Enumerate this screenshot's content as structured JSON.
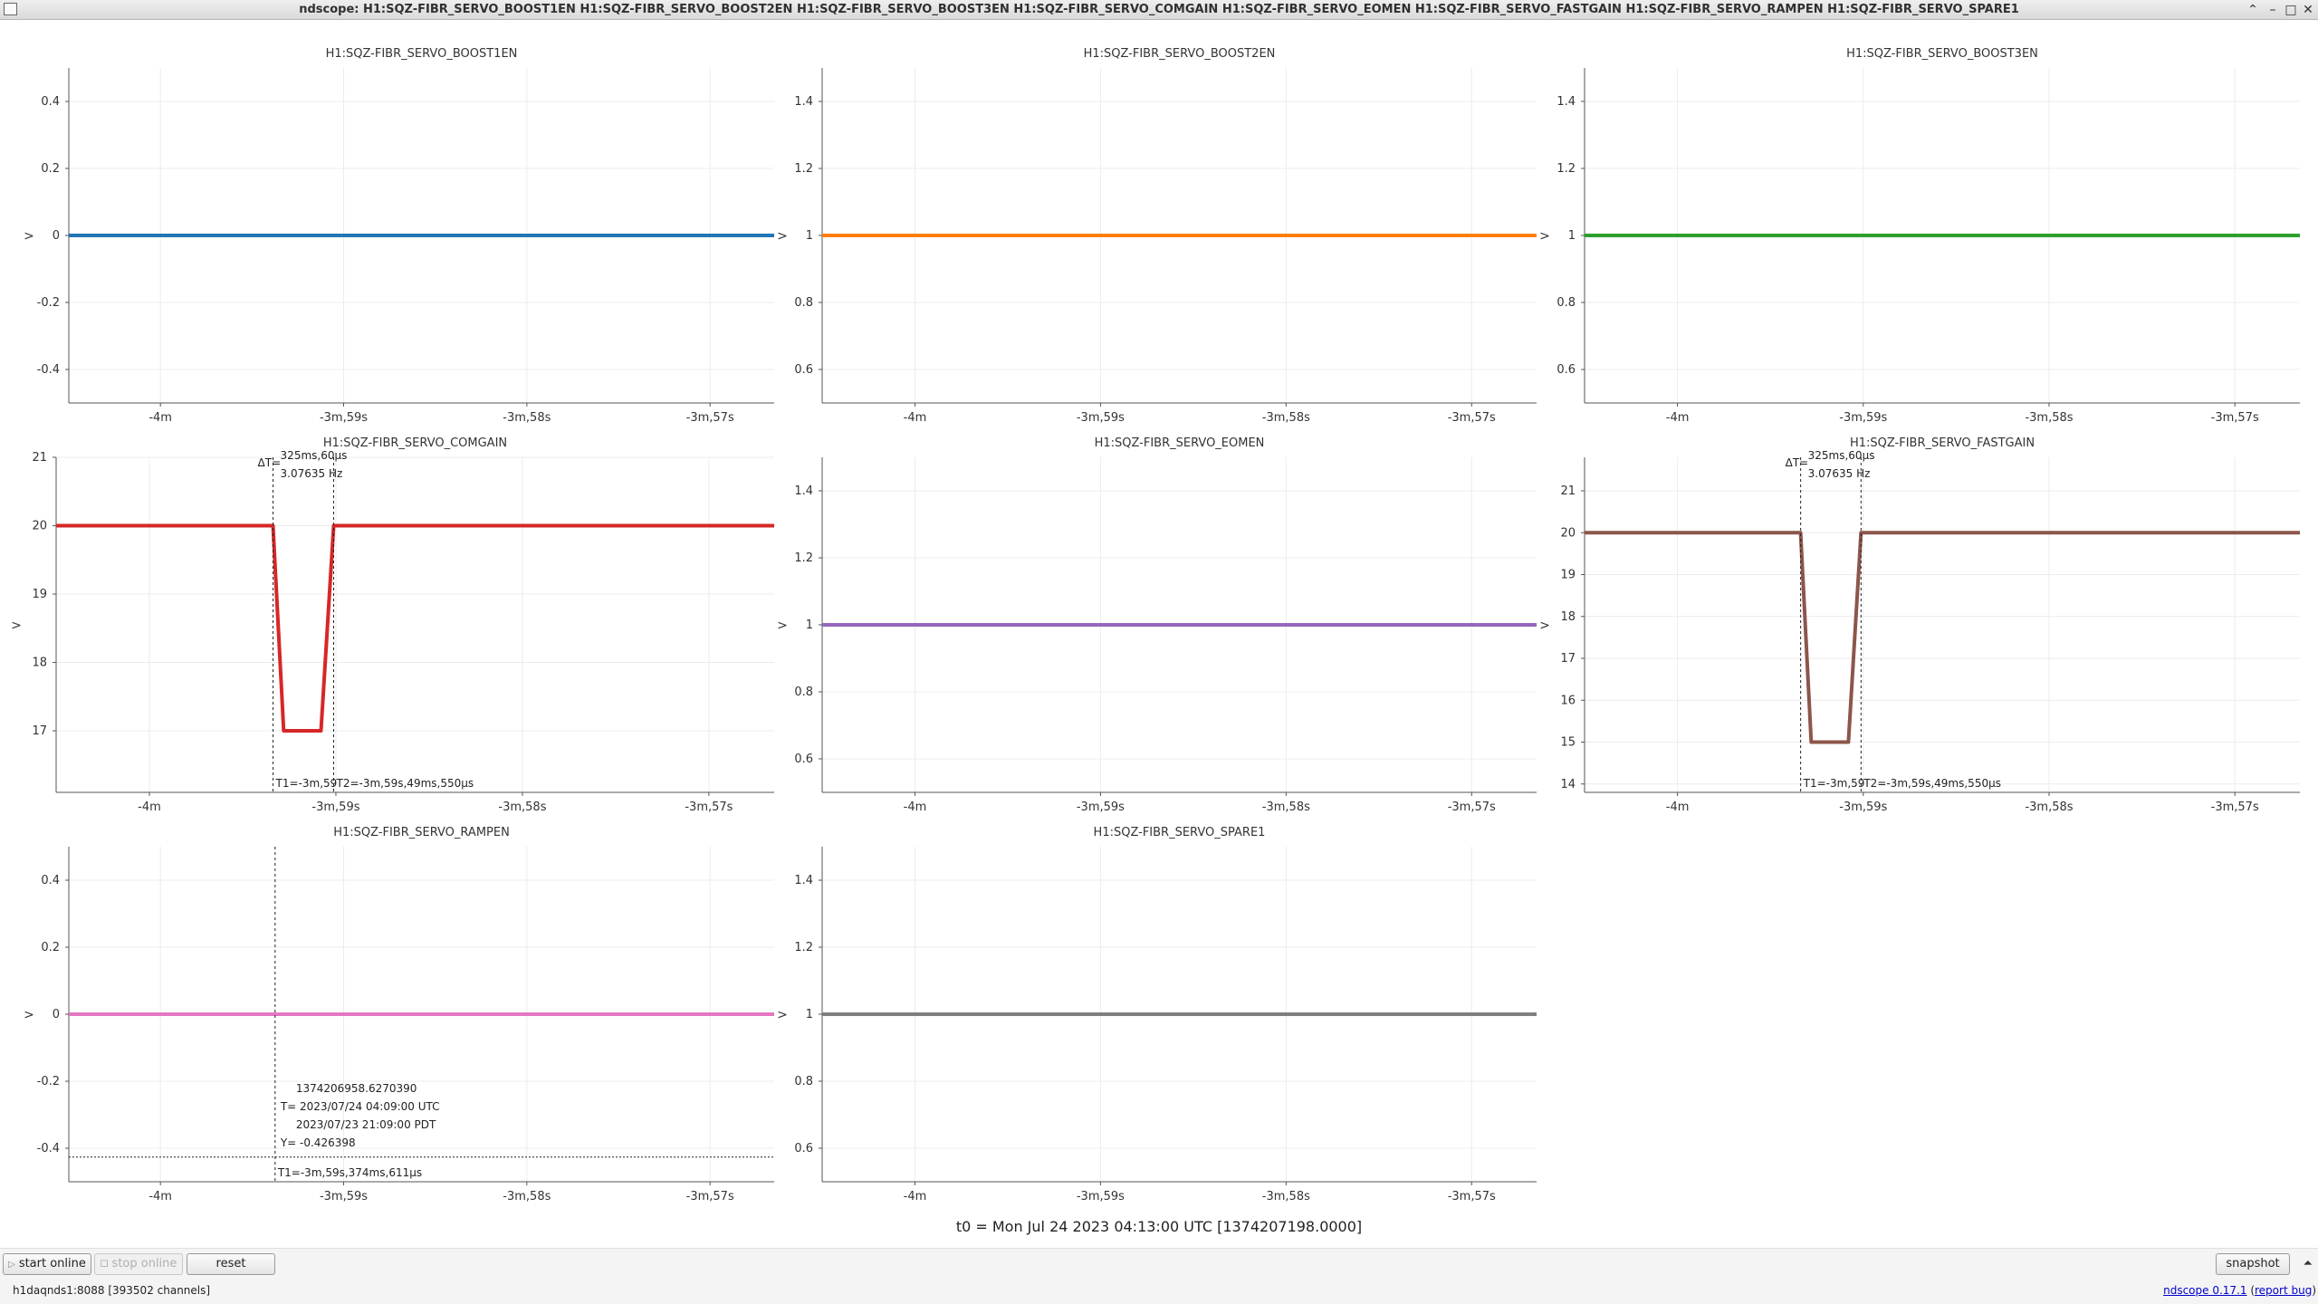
{
  "window": {
    "title": "ndscope: H1:SQZ-FIBR_SERVO_BOOST1EN H1:SQZ-FIBR_SERVO_BOOST2EN H1:SQZ-FIBR_SERVO_BOOST3EN H1:SQZ-FIBR_SERVO_COMGAIN H1:SQZ-FIBR_SERVO_EOMEN H1:SQZ-FIBR_SERVO_FASTGAIN H1:SQZ-FIBR_SERVO_RAMPEN H1:SQZ-FIBR_SERVO_SPARE1",
    "minimize_glyph": "–",
    "maximize_glyph": "□",
    "restore_glyph": "⌃",
    "close_glyph": "✕"
  },
  "x_ticks": [
    "-4m",
    "-3m,59s",
    "-3m,58s",
    "-3m,57s"
  ],
  "y_axis_label": ">",
  "chart_data": [
    {
      "type": "line",
      "title": "H1:SQZ-FIBR_SERVO_BOOST1EN",
      "color": "#1f77b4",
      "ylim": [
        -0.5,
        0.5
      ],
      "yticks": [
        0.4,
        0.2,
        0,
        -0.2,
        -0.4
      ],
      "ytick_labels": [
        "0.4",
        "0.2",
        "0",
        "-0.2",
        "-0.4"
      ],
      "x": [
        -4.5,
        -0.65
      ],
      "series": [
        {
          "x": [
            -4.5,
            -0.65
          ],
          "values": [
            0,
            0
          ]
        }
      ]
    },
    {
      "type": "line",
      "title": "H1:SQZ-FIBR_SERVO_BOOST2EN",
      "color": "#ff7f0e",
      "ylim": [
        0.5,
        1.5
      ],
      "yticks": [
        1.4,
        1.2,
        1,
        0.8,
        0.6
      ],
      "ytick_labels": [
        "1.4",
        "1.2",
        "1",
        "0.8",
        "0.6"
      ],
      "series": [
        {
          "x": [
            -4.5,
            -0.65
          ],
          "values": [
            1,
            1
          ]
        }
      ]
    },
    {
      "type": "line",
      "title": "H1:SQZ-FIBR_SERVO_BOOST3EN",
      "color": "#2ca02c",
      "ylim": [
        0.5,
        1.5
      ],
      "yticks": [
        1.4,
        1.2,
        1,
        0.8,
        0.6
      ],
      "ytick_labels": [
        "1.4",
        "1.2",
        "1",
        "0.8",
        "0.6"
      ],
      "series": [
        {
          "x": [
            -4.5,
            -0.65
          ],
          "values": [
            1,
            1
          ]
        }
      ]
    },
    {
      "type": "line",
      "title": "H1:SQZ-FIBR_SERVO_COMGAIN",
      "color": "#d62728",
      "ylim": [
        16.1,
        21
      ],
      "yticks": [
        21,
        20,
        19,
        18,
        17
      ],
      "ytick_labels": [
        "21",
        "20",
        "19",
        "18",
        "17"
      ],
      "series": [
        {
          "x": [
            -4.5,
            -3.337,
            -3.28,
            -3.08,
            -3.012,
            -0.65
          ],
          "values": [
            20,
            20,
            17,
            17,
            20,
            20
          ]
        }
      ],
      "cursors": {
        "t1": -3.337,
        "t2": -3.012,
        "delta_label": "ΔT=",
        "delta_text": "325ms,60µs",
        "freq_text": "3.07635 Hz",
        "t1_text": "T1=-3m,59",
        "t2_text": "T2=-3m,59s,49ms,550µs"
      }
    },
    {
      "type": "line",
      "title": "H1:SQZ-FIBR_SERVO_EOMEN",
      "color": "#9467bd",
      "ylim": [
        0.5,
        1.5
      ],
      "yticks": [
        1.4,
        1.2,
        1,
        0.8,
        0.6
      ],
      "ytick_labels": [
        "1.4",
        "1.2",
        "1",
        "0.8",
        "0.6"
      ],
      "series": [
        {
          "x": [
            -4.5,
            -0.65
          ],
          "values": [
            1,
            1
          ]
        }
      ]
    },
    {
      "type": "line",
      "title": "H1:SQZ-FIBR_SERVO_FASTGAIN",
      "color": "#8c564b",
      "ylim": [
        13.8,
        21.8
      ],
      "yticks": [
        21,
        20,
        19,
        18,
        17,
        16,
        15,
        14
      ],
      "ytick_labels": [
        "21",
        "20",
        "19",
        "18",
        "17",
        "16",
        "15",
        "14"
      ],
      "series": [
        {
          "x": [
            -4.5,
            -3.337,
            -3.28,
            -3.08,
            -3.012,
            -0.65
          ],
          "values": [
            20,
            20,
            15,
            15,
            20,
            20
          ]
        }
      ],
      "cursors": {
        "t1": -3.337,
        "t2": -3.012,
        "delta_label": "ΔT=",
        "delta_text": "325ms,60µs",
        "freq_text": "3.07635 Hz",
        "t1_text": "T1=-3m,59",
        "t2_text": "T2=-3m,59s,49ms,550µs"
      }
    },
    {
      "type": "line",
      "title": "H1:SQZ-FIBR_SERVO_RAMPEN",
      "color": "#e377c2",
      "ylim": [
        -0.5,
        0.5
      ],
      "yticks": [
        0.4,
        0.2,
        0,
        -0.2,
        -0.4
      ],
      "ytick_labels": [
        "0.4",
        "0.2",
        "0",
        "-0.2",
        "-0.4"
      ],
      "series": [
        {
          "x": [
            -4.5,
            -0.65
          ],
          "values": [
            0,
            0
          ]
        }
      ],
      "crosshair": {
        "t1": -3.374,
        "y": -0.426398,
        "gps": "1374206958.6270390",
        "utc": "T= 2023/07/24 04:09:00 UTC",
        "pdt": "2023/07/23 21:09:00 PDT",
        "yval": "Y= -0.426398",
        "t1_text": "T1=-3m,59s,374ms,611µs"
      }
    },
    {
      "type": "line",
      "title": "H1:SQZ-FIBR_SERVO_SPARE1",
      "color": "#7f7f7f",
      "ylim": [
        0.5,
        1.5
      ],
      "yticks": [
        1.4,
        1.2,
        1,
        0.8,
        0.6
      ],
      "ytick_labels": [
        "1.4",
        "1.2",
        "1",
        "0.8",
        "0.6"
      ],
      "series": [
        {
          "x": [
            -4.5,
            -0.65
          ],
          "values": [
            1,
            1
          ]
        }
      ]
    }
  ],
  "t0_label": "t0 = Mon Jul 24 2023 04:13:00 UTC [1374207198.0000]",
  "controls": {
    "start_online": "start online",
    "stop_online": "stop online",
    "reset": "reset",
    "snapshot": "snapshot",
    "play_glyph": "▷",
    "stop_glyph": "☐",
    "collapse_glyph": "⏶"
  },
  "status": {
    "server": "h1daqnds1:8088  [393502 channels]",
    "version_link": "ndscope 0.17.1",
    "report_bug": "report bug"
  }
}
